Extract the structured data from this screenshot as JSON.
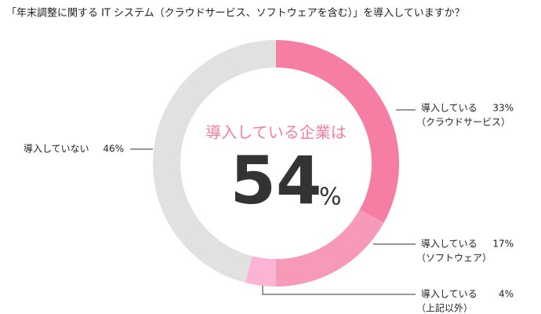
{
  "chart_data": {
    "type": "donut",
    "title": "「年末調整に関する IT システム（クラウドサービス、ソフトウェアを含む）」を導入していますか？",
    "labels": [
      {
        "name": "導入している",
        "detail": "（クラウドサービス）"
      },
      {
        "name": "導入している",
        "detail": "（ソフトウェア）"
      },
      {
        "name": "導入している",
        "detail": "（上記以外）"
      },
      {
        "name": "導入していない"
      }
    ],
    "values": [
      33,
      17,
      4,
      46
    ],
    "value_labels": [
      "33%",
      "17%",
      "4%",
      "46%"
    ],
    "colors": [
      "#f77ea3",
      "#f799b9",
      "#fbb4d4",
      "#e1e1e1"
    ],
    "center_label": "導入している企業は",
    "center_value": 54,
    "center_unit": "%"
  }
}
